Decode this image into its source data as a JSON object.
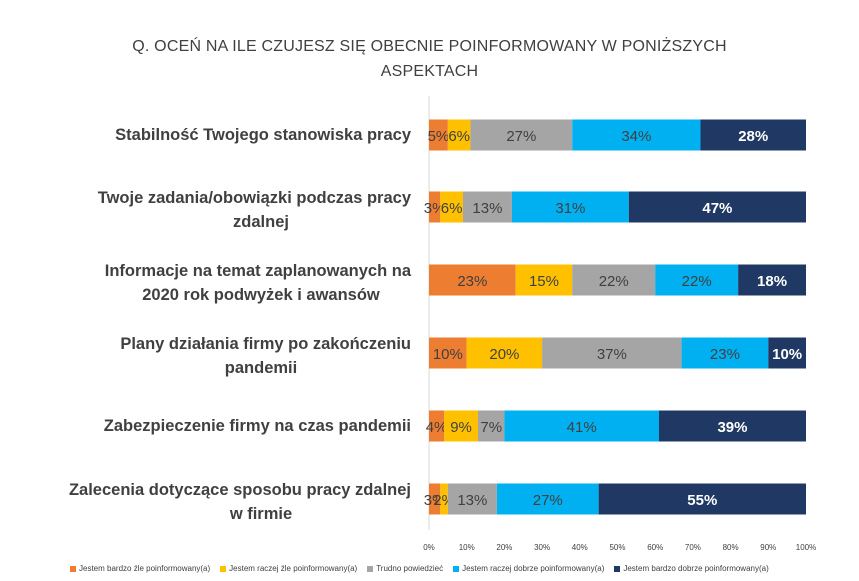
{
  "chart_data": {
    "type": "bar",
    "orientation": "horizontal-stacked-100",
    "title_line1": "Q. OCEŃ NA ILE CZUJESZ SIĘ OBECNIE POINFORMOWANY W PONIŻSZYCH",
    "title_line2": "ASPEKTACH",
    "categories": [
      [
        "Stabilność Twojego stanowiska pracy"
      ],
      [
        "Twoje zadania/obowiązki podczas pracy",
        "zdalnej"
      ],
      [
        "Informacje na temat zaplanowanych na",
        "2020 rok podwyżek i awansów"
      ],
      [
        "Plany działania firmy po zakończeniu",
        "pandemii"
      ],
      [
        "Zabezpieczenie firmy na czas pandemii"
      ],
      [
        "Zalecenia dotyczące sposobu pracy zdalnej",
        "w firmie"
      ]
    ],
    "series": [
      {
        "name": "Jestem bardzo źle poinformowany(a)",
        "color": "#ED7D31",
        "values": [
          5,
          3,
          23,
          10,
          4,
          3
        ],
        "labels": [
          "5%",
          "3%",
          "23%",
          "10%",
          "4%",
          "3%"
        ]
      },
      {
        "name": "Jestem raczej źle poinformowany(a)",
        "color": "#FFC000",
        "values": [
          6,
          6,
          15,
          20,
          9,
          2
        ],
        "labels": [
          "6%",
          "6%",
          "15%",
          "20%",
          "9%",
          "2%"
        ]
      },
      {
        "name": "Trudno powiedzieć",
        "color": "#A5A5A5",
        "values": [
          27,
          13,
          22,
          37,
          7,
          13
        ],
        "labels": [
          "27%",
          "13%",
          "22%",
          "37%",
          "7%",
          "13%"
        ]
      },
      {
        "name": "Jestem raczej dobrze poinformowany(a)",
        "color": "#00B0F0",
        "values": [
          34,
          31,
          22,
          23,
          41,
          27
        ],
        "labels": [
          "34%",
          "31%",
          "22%",
          "23%",
          "41%",
          "27%"
        ]
      },
      {
        "name": "Jestem bardzo dobrze poinformowany(a)",
        "color": "#1F3864",
        "values": [
          28,
          47,
          18,
          10,
          39,
          55
        ],
        "labels": [
          "28%",
          "47%",
          "18%",
          "10%",
          "39%",
          "55%"
        ]
      }
    ],
    "xticks": [
      "0%",
      "10%",
      "20%",
      "30%",
      "40%",
      "50%",
      "60%",
      "70%",
      "80%",
      "90%",
      "100%"
    ],
    "xlim": [
      0,
      100
    ],
    "grid": true,
    "legend_position": "bottom"
  }
}
